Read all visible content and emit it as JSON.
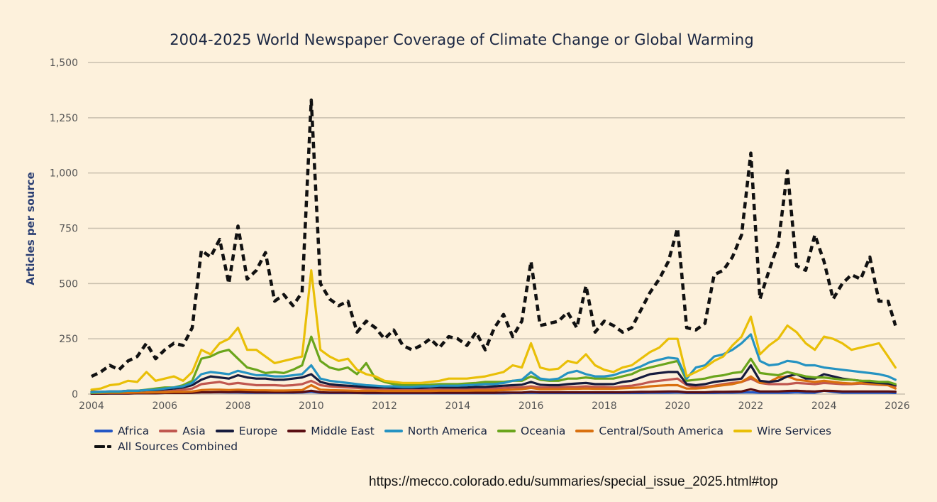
{
  "source_url": "https://mecco.colorado.edu/summaries/special_issue_2025.html#top",
  "chart_data": {
    "type": "line",
    "title": "2004-2025 World Newspaper Coverage of Climate Change or Global Warming",
    "xlabel": "",
    "ylabel": "Articles per source",
    "xlim": [
      2004,
      2026
    ],
    "ylim": [
      0,
      1500
    ],
    "x_ticks": [
      "2004",
      "2006",
      "2008",
      "2010",
      "2012",
      "2014",
      "2016",
      "2018",
      "2020",
      "2022",
      "2024",
      "2026"
    ],
    "y_ticks": [
      "0",
      "250",
      "500",
      "750",
      "1,000",
      "1,250",
      "1,500"
    ],
    "grid": true,
    "legend_position": "bottom",
    "x": [
      2004.0,
      2004.25,
      2004.5,
      2004.75,
      2005.0,
      2005.25,
      2005.5,
      2005.75,
      2006.0,
      2006.25,
      2006.5,
      2006.75,
      2007.0,
      2007.25,
      2007.5,
      2007.75,
      2008.0,
      2008.25,
      2008.5,
      2008.75,
      2009.0,
      2009.25,
      2009.5,
      2009.75,
      2010.0,
      2010.25,
      2010.5,
      2010.75,
      2011.0,
      2011.25,
      2011.5,
      2011.75,
      2012.0,
      2012.25,
      2012.5,
      2012.75,
      2013.0,
      2013.25,
      2013.5,
      2013.75,
      2014.0,
      2014.25,
      2014.5,
      2014.75,
      2015.0,
      2015.25,
      2015.5,
      2015.75,
      2016.0,
      2016.25,
      2016.5,
      2016.75,
      2017.0,
      2017.25,
      2017.5,
      2017.75,
      2018.0,
      2018.25,
      2018.5,
      2018.75,
      2019.0,
      2019.25,
      2019.5,
      2019.75,
      2020.0,
      2020.25,
      2020.5,
      2020.75,
      2021.0,
      2021.25,
      2021.5,
      2021.75,
      2022.0,
      2022.25,
      2022.5,
      2022.75,
      2023.0,
      2023.25,
      2023.5,
      2023.75,
      2024.0,
      2024.25,
      2024.5,
      2024.75,
      2025.0,
      2025.25,
      2025.5,
      2025.75,
      2025.95
    ],
    "series": [
      {
        "name": "Africa",
        "color": "#2457c5",
        "dashed": false,
        "values": [
          2,
          2,
          3,
          3,
          3,
          4,
          4,
          4,
          5,
          5,
          5,
          6,
          8,
          8,
          8,
          7,
          7,
          6,
          6,
          6,
          6,
          6,
          6,
          7,
          10,
          6,
          5,
          5,
          5,
          5,
          4,
          4,
          4,
          4,
          4,
          4,
          4,
          4,
          4,
          4,
          4,
          4,
          4,
          4,
          4,
          4,
          5,
          5,
          6,
          5,
          5,
          5,
          5,
          5,
          5,
          5,
          5,
          5,
          5,
          5,
          5,
          6,
          6,
          6,
          7,
          5,
          5,
          5,
          5,
          6,
          6,
          7,
          8,
          6,
          6,
          6,
          6,
          8,
          6,
          6,
          15,
          10,
          6,
          6,
          6,
          6,
          6,
          6,
          5
        ]
      },
      {
        "name": "Asia",
        "color": "#c0574f",
        "dashed": false,
        "values": [
          5,
          5,
          6,
          6,
          8,
          8,
          10,
          10,
          12,
          15,
          20,
          25,
          45,
          50,
          55,
          45,
          50,
          45,
          40,
          40,
          40,
          38,
          40,
          45,
          60,
          40,
          35,
          32,
          30,
          28,
          25,
          25,
          22,
          22,
          20,
          20,
          20,
          20,
          20,
          22,
          22,
          22,
          25,
          25,
          25,
          28,
          30,
          30,
          35,
          30,
          30,
          30,
          32,
          32,
          35,
          32,
          32,
          30,
          35,
          38,
          45,
          55,
          60,
          65,
          70,
          40,
          30,
          32,
          38,
          45,
          50,
          55,
          70,
          50,
          45,
          45,
          45,
          50,
          48,
          45,
          50,
          48,
          45,
          45,
          48,
          45,
          42,
          40,
          35
        ]
      },
      {
        "name": "Europe",
        "color": "#161b3d",
        "dashed": false,
        "values": [
          10,
          10,
          12,
          12,
          15,
          15,
          18,
          18,
          22,
          25,
          30,
          40,
          65,
          80,
          75,
          70,
          85,
          75,
          70,
          70,
          65,
          65,
          70,
          75,
          90,
          55,
          45,
          40,
          38,
          35,
          32,
          30,
          30,
          28,
          28,
          28,
          28,
          30,
          30,
          30,
          30,
          30,
          32,
          32,
          35,
          38,
          40,
          42,
          55,
          42,
          40,
          40,
          45,
          48,
          50,
          45,
          45,
          45,
          55,
          60,
          75,
          90,
          95,
          100,
          100,
          45,
          40,
          45,
          55,
          60,
          65,
          70,
          130,
          60,
          55,
          60,
          80,
          90,
          70,
          70,
          90,
          80,
          70,
          65,
          60,
          55,
          50,
          48,
          40
        ]
      },
      {
        "name": "Middle East",
        "color": "#5a0e12",
        "dashed": false,
        "values": [
          2,
          2,
          3,
          3,
          3,
          4,
          4,
          4,
          5,
          5,
          5,
          6,
          8,
          8,
          9,
          9,
          10,
          9,
          8,
          8,
          8,
          8,
          8,
          9,
          15,
          8,
          7,
          7,
          7,
          6,
          6,
          6,
          6,
          6,
          6,
          6,
          6,
          6,
          6,
          6,
          6,
          6,
          6,
          6,
          6,
          7,
          7,
          7,
          10,
          8,
          8,
          8,
          8,
          8,
          8,
          8,
          8,
          8,
          8,
          9,
          10,
          10,
          11,
          12,
          12,
          8,
          8,
          8,
          10,
          10,
          11,
          12,
          22,
          12,
          12,
          12,
          14,
          15,
          13,
          12,
          15,
          14,
          12,
          12,
          12,
          12,
          12,
          12,
          11
        ]
      },
      {
        "name": "North America",
        "color": "#2593c2",
        "dashed": false,
        "values": [
          8,
          10,
          12,
          12,
          15,
          15,
          18,
          20,
          25,
          30,
          35,
          50,
          90,
          100,
          95,
          90,
          105,
          95,
          85,
          85,
          80,
          80,
          85,
          90,
          130,
          70,
          60,
          55,
          50,
          45,
          40,
          38,
          35,
          35,
          32,
          32,
          35,
          35,
          38,
          38,
          38,
          40,
          42,
          45,
          45,
          50,
          60,
          65,
          100,
          70,
          65,
          70,
          95,
          105,
          90,
          80,
          80,
          85,
          100,
          110,
          125,
          145,
          155,
          165,
          160,
          70,
          120,
          130,
          170,
          180,
          200,
          230,
          270,
          150,
          130,
          135,
          150,
          145,
          130,
          130,
          120,
          115,
          110,
          105,
          100,
          95,
          90,
          80,
          65
        ]
      },
      {
        "name": "Oceania",
        "color": "#6aa51c",
        "dashed": false,
        "values": [
          5,
          8,
          10,
          10,
          15,
          15,
          20,
          25,
          30,
          30,
          40,
          60,
          160,
          170,
          190,
          200,
          160,
          120,
          110,
          95,
          100,
          95,
          110,
          130,
          260,
          150,
          120,
          110,
          120,
          90,
          140,
          70,
          55,
          45,
          40,
          40,
          40,
          42,
          45,
          45,
          45,
          48,
          50,
          55,
          55,
          55,
          60,
          60,
          80,
          65,
          60,
          60,
          70,
          70,
          75,
          70,
          70,
          70,
          80,
          90,
          110,
          120,
          130,
          140,
          150,
          60,
          65,
          70,
          80,
          85,
          95,
          100,
          160,
          95,
          90,
          85,
          100,
          90,
          80,
          75,
          75,
          70,
          65,
          65,
          60,
          60,
          55,
          55,
          45
        ]
      },
      {
        "name": "Central/South America",
        "color": "#d9700f",
        "dashed": false,
        "values": [
          5,
          5,
          6,
          6,
          6,
          7,
          7,
          8,
          8,
          10,
          10,
          12,
          18,
          20,
          20,
          18,
          20,
          18,
          17,
          17,
          16,
          16,
          17,
          18,
          40,
          20,
          18,
          17,
          16,
          15,
          15,
          15,
          14,
          14,
          14,
          14,
          14,
          14,
          15,
          15,
          15,
          15,
          16,
          16,
          16,
          18,
          20,
          22,
          28,
          22,
          22,
          22,
          24,
          24,
          25,
          24,
          24,
          24,
          26,
          28,
          30,
          35,
          38,
          40,
          40,
          25,
          25,
          28,
          35,
          40,
          45,
          55,
          80,
          50,
          55,
          75,
          80,
          65,
          60,
          55,
          60,
          55,
          50,
          48,
          50,
          48,
          45,
          40,
          25
        ]
      },
      {
        "name": "Wire Services",
        "color": "#e9bf07",
        "dashed": false,
        "values": [
          20,
          25,
          40,
          45,
          60,
          55,
          100,
          60,
          70,
          80,
          60,
          100,
          200,
          180,
          230,
          250,
          300,
          200,
          200,
          170,
          140,
          150,
          160,
          170,
          560,
          200,
          170,
          150,
          160,
          110,
          90,
          80,
          60,
          55,
          50,
          50,
          50,
          55,
          60,
          70,
          70,
          70,
          75,
          80,
          90,
          100,
          130,
          120,
          230,
          120,
          110,
          115,
          150,
          140,
          180,
          130,
          110,
          100,
          120,
          130,
          160,
          190,
          210,
          250,
          250,
          80,
          100,
          120,
          150,
          170,
          220,
          260,
          350,
          180,
          220,
          250,
          310,
          280,
          230,
          200,
          260,
          250,
          230,
          200,
          210,
          220,
          230,
          170,
          120
        ]
      },
      {
        "name": "All Sources Combined",
        "color": "#111111",
        "dashed": true,
        "values": [
          80,
          100,
          130,
          110,
          150,
          170,
          230,
          160,
          200,
          230,
          220,
          300,
          650,
          620,
          700,
          500,
          760,
          520,
          560,
          640,
          420,
          450,
          400,
          460,
          1330,
          500,
          430,
          400,
          420,
          280,
          330,
          300,
          250,
          290,
          220,
          200,
          220,
          250,
          210,
          260,
          250,
          220,
          280,
          200,
          300,
          360,
          260,
          330,
          600,
          310,
          320,
          330,
          370,
          300,
          490,
          280,
          330,
          310,
          280,
          300,
          380,
          460,
          520,
          600,
          750,
          300,
          290,
          320,
          540,
          560,
          620,
          720,
          1090,
          430,
          560,
          680,
          1010,
          580,
          560,
          720,
          600,
          430,
          500,
          540,
          520,
          620,
          420,
          420,
          310
        ]
      }
    ]
  }
}
